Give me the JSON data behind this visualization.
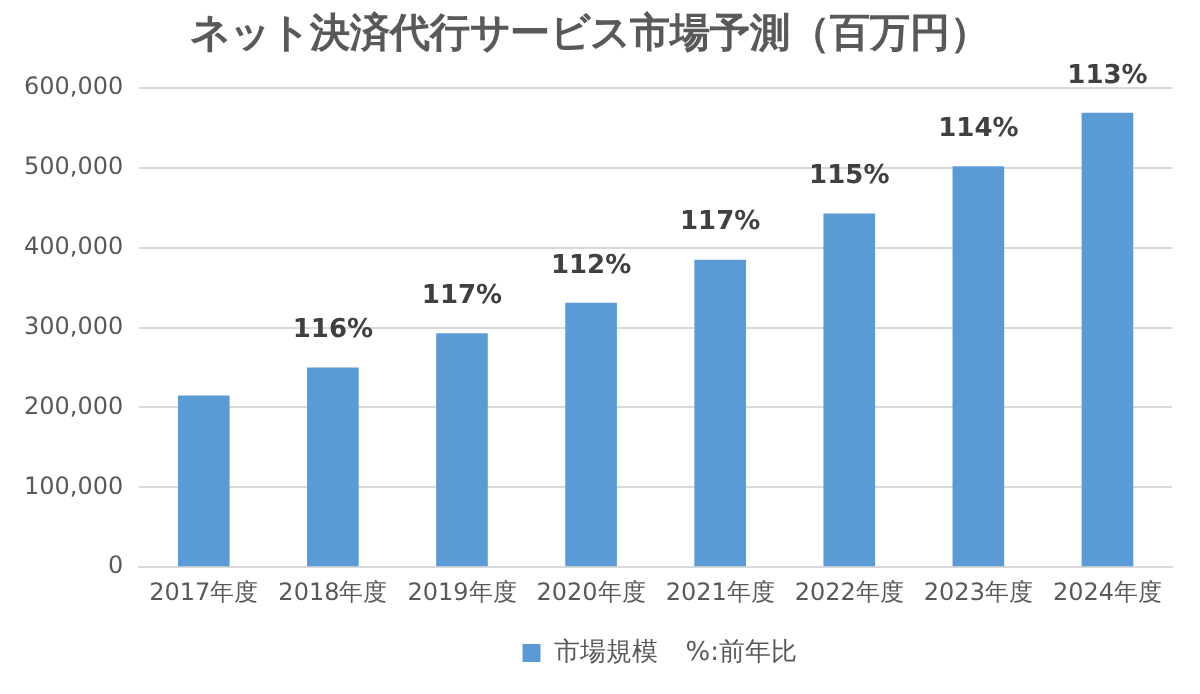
{
  "chart_data": {
    "type": "bar",
    "title": "ネット決済代行サービス市場予測（百万円）",
    "categories": [
      "2017年度",
      "2018年度",
      "2019年度",
      "2020年度",
      "2021年度",
      "2022年度",
      "2023年度",
      "2024年度"
    ],
    "series": [
      {
        "name": "市場規模",
        "color": "#5b9bd5",
        "values": [
          215000,
          250000,
          293000,
          331000,
          385000,
          443000,
          502000,
          569000
        ]
      }
    ],
    "ylim": [
      0,
      600000
    ],
    "yticks": [
      0,
      {
        "value": 100000,
        "label": "100,000"
      },
      {
        "value": 200000,
        "label": "200,000"
      },
      {
        "value": 300000,
        "label": "300,000"
      },
      {
        "value": 400000,
        "label": "400,000"
      },
      {
        "value": 500000,
        "label": "500,000"
      },
      {
        "value": 600000,
        "label": "600,000"
      }
    ],
    "grid": "y",
    "legend": "bottom",
    "annotations": [
      {
        "text": "116%",
        "x": "2018年度",
        "y": 250000
      },
      {
        "text": "117%",
        "x": "2019年度",
        "y": 293000
      },
      {
        "text": "112%",
        "x": "2020年度",
        "y": 331000
      },
      {
        "text": "117%",
        "x": "2021年度",
        "y": 385000
      },
      {
        "text": "115%",
        "x": "2022年度",
        "y": 443000
      },
      {
        "text": "114%",
        "x": "2023年度",
        "y": 502000
      },
      {
        "text": "113%",
        "x": "2024年度",
        "y": 569000
      },
      "%:前年比"
    ]
  }
}
